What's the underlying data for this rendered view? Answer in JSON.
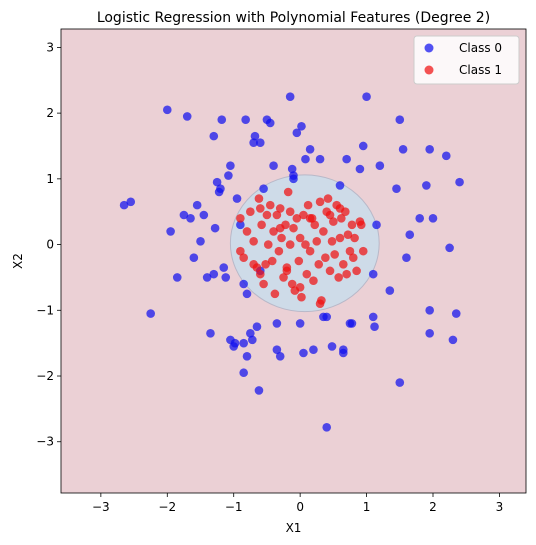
{
  "chart_data": {
    "type": "scatter",
    "title": "Logistic Regression with Polynomial Features (Degree 2)",
    "xlabel": "X1",
    "ylabel": "X2",
    "xlim": [
      -3.6,
      3.4
    ],
    "ylim": [
      -3.78,
      3.28
    ],
    "xticks": [
      -3,
      -2,
      -1,
      0,
      1,
      2,
      3
    ],
    "yticks": [
      -3,
      -2,
      -1,
      0,
      1,
      2,
      3
    ],
    "grid": false,
    "legend_placement": "top-right",
    "background_region": {
      "label": "Class 0 region",
      "color": "#ebd0d5"
    },
    "decision_region": {
      "center": [
        0.07,
        0.02
      ],
      "radius_x": 1.12,
      "radius_y": 1.04,
      "color": "#cedbe8",
      "edge_color": "#b8b8c8"
    },
    "series": [
      {
        "name": "Class 0",
        "color": "#1010ee",
        "points": [
          [
            -2.65,
            0.6
          ],
          [
            -2.55,
            0.65
          ],
          [
            -2.25,
            -1.05
          ],
          [
            -2.0,
            2.05
          ],
          [
            -1.95,
            0.2
          ],
          [
            -1.85,
            -0.5
          ],
          [
            -1.75,
            0.45
          ],
          [
            -1.7,
            1.95
          ],
          [
            -1.65,
            0.4
          ],
          [
            -1.6,
            -0.2
          ],
          [
            -1.55,
            0.6
          ],
          [
            -1.5,
            0.05
          ],
          [
            -1.45,
            0.45
          ],
          [
            -1.4,
            -0.5
          ],
          [
            -1.35,
            -1.35
          ],
          [
            -1.3,
            1.65
          ],
          [
            -1.3,
            -0.45
          ],
          [
            -1.28,
            0.25
          ],
          [
            -1.25,
            0.95
          ],
          [
            -1.22,
            0.8
          ],
          [
            -1.2,
            0.85
          ],
          [
            -1.18,
            1.9
          ],
          [
            -1.15,
            -0.35
          ],
          [
            -1.12,
            -0.5
          ],
          [
            -1.08,
            1.05
          ],
          [
            -1.05,
            1.2
          ],
          [
            -1.05,
            -1.45
          ],
          [
            -1.0,
            -1.55
          ],
          [
            -0.98,
            -1.5
          ],
          [
            -0.95,
            0.7
          ],
          [
            -0.9,
            0.3
          ],
          [
            -0.85,
            -0.6
          ],
          [
            -0.85,
            -1.95
          ],
          [
            -0.82,
            1.9
          ],
          [
            -0.8,
            -0.75
          ],
          [
            -0.8,
            -1.7
          ],
          [
            -0.75,
            -1.35
          ],
          [
            -0.72,
            -1.45
          ],
          [
            -0.7,
            1.55
          ],
          [
            -0.68,
            1.65
          ],
          [
            -0.65,
            -1.25
          ],
          [
            -0.62,
            -2.22
          ],
          [
            -0.6,
            1.55
          ],
          [
            -0.55,
            0.85
          ],
          [
            -0.5,
            1.9
          ],
          [
            -0.45,
            1.85
          ],
          [
            -0.4,
            1.2
          ],
          [
            -0.35,
            -1.2
          ],
          [
            -0.35,
            -1.6
          ],
          [
            -0.3,
            -1.7
          ],
          [
            -0.15,
            2.25
          ],
          [
            -0.12,
            1.15
          ],
          [
            -0.1,
            1.0
          ],
          [
            -0.1,
            1.05
          ],
          [
            -0.05,
            1.7
          ],
          [
            0.0,
            -1.2
          ],
          [
            0.02,
            1.8
          ],
          [
            0.05,
            -1.65
          ],
          [
            0.15,
            1.45
          ],
          [
            0.2,
            -1.6
          ],
          [
            0.3,
            1.3
          ],
          [
            0.35,
            -1.1
          ],
          [
            0.4,
            -1.1
          ],
          [
            0.4,
            -2.78
          ],
          [
            0.48,
            -1.55
          ],
          [
            0.6,
            0.9
          ],
          [
            0.65,
            -1.6
          ],
          [
            0.65,
            -1.65
          ],
          [
            0.7,
            1.3
          ],
          [
            0.75,
            -1.2
          ],
          [
            0.78,
            -1.2
          ],
          [
            0.9,
            1.15
          ],
          [
            0.95,
            1.5
          ],
          [
            1.0,
            2.25
          ],
          [
            1.1,
            -1.1
          ],
          [
            1.1,
            -0.45
          ],
          [
            1.12,
            -1.25
          ],
          [
            1.15,
            0.3
          ],
          [
            1.2,
            1.2
          ],
          [
            1.35,
            -0.7
          ],
          [
            1.5,
            1.9
          ],
          [
            1.5,
            -2.1
          ],
          [
            1.55,
            1.45
          ],
          [
            1.6,
            -0.2
          ],
          [
            1.65,
            0.15
          ],
          [
            1.8,
            0.4
          ],
          [
            1.9,
            0.9
          ],
          [
            1.95,
            1.45
          ],
          [
            1.95,
            -1.0
          ],
          [
            1.95,
            -1.35
          ],
          [
            2.0,
            0.4
          ],
          [
            2.2,
            1.35
          ],
          [
            2.25,
            -0.05
          ],
          [
            2.3,
            -1.45
          ],
          [
            2.35,
            -1.05
          ],
          [
            2.4,
            0.95
          ],
          [
            1.45,
            0.85
          ],
          [
            -0.85,
            -1.5
          ],
          [
            0.08,
            1.3
          ],
          [
            -0.6,
            -0.4
          ]
        ]
      },
      {
        "name": "Class 1",
        "color": "#f01010",
        "points": [
          [
            -0.9,
            -0.1
          ],
          [
            -0.9,
            0.4
          ],
          [
            -0.85,
            -0.2
          ],
          [
            -0.8,
            0.2
          ],
          [
            -0.75,
            0.5
          ],
          [
            -0.7,
            0.05
          ],
          [
            -0.65,
            -0.35
          ],
          [
            -0.62,
            0.7
          ],
          [
            -0.6,
            -0.45
          ],
          [
            -0.58,
            0.3
          ],
          [
            -0.55,
            -0.6
          ],
          [
            -0.52,
            -0.3
          ],
          [
            -0.5,
            0.45
          ],
          [
            -0.48,
            0.0
          ],
          [
            -0.45,
            0.6
          ],
          [
            -0.42,
            -0.25
          ],
          [
            -0.4,
            0.2
          ],
          [
            -0.38,
            -0.75
          ],
          [
            -0.35,
            0.45
          ],
          [
            -0.32,
            -0.1
          ],
          [
            -0.3,
            0.55
          ],
          [
            -0.28,
            0.1
          ],
          [
            -0.25,
            -0.5
          ],
          [
            -0.22,
            0.3
          ],
          [
            -0.2,
            -0.35
          ],
          [
            -0.18,
            0.8
          ],
          [
            -0.15,
            0.0
          ],
          [
            -0.12,
            -0.6
          ],
          [
            -0.1,
            0.25
          ],
          [
            -0.08,
            -0.7
          ],
          [
            -0.05,
            0.4
          ],
          [
            -0.02,
            -0.25
          ],
          [
            0.0,
            0.1
          ],
          [
            0.02,
            -0.8
          ],
          [
            0.05,
            0.45
          ],
          [
            0.08,
            0.0
          ],
          [
            0.1,
            -0.45
          ],
          [
            0.12,
            0.6
          ],
          [
            0.15,
            -0.1
          ],
          [
            0.18,
            0.4
          ],
          [
            0.2,
            -0.55
          ],
          [
            0.22,
            0.3
          ],
          [
            0.25,
            0.05
          ],
          [
            0.28,
            -0.3
          ],
          [
            0.3,
            0.65
          ],
          [
            0.32,
            -0.85
          ],
          [
            0.35,
            0.2
          ],
          [
            0.38,
            -0.2
          ],
          [
            0.4,
            0.5
          ],
          [
            0.42,
            0.7
          ],
          [
            0.45,
            -0.4
          ],
          [
            0.48,
            0.05
          ],
          [
            0.5,
            0.35
          ],
          [
            0.52,
            -0.15
          ],
          [
            0.55,
            0.6
          ],
          [
            0.58,
            -0.5
          ],
          [
            0.6,
            0.1
          ],
          [
            0.62,
            0.4
          ],
          [
            0.65,
            -0.3
          ],
          [
            0.68,
            0.5
          ],
          [
            0.7,
            -0.45
          ],
          [
            0.72,
            0.15
          ],
          [
            0.75,
            -0.1
          ],
          [
            0.78,
            0.3
          ],
          [
            0.8,
            -0.2
          ],
          [
            0.82,
            0.1
          ],
          [
            0.85,
            -0.4
          ],
          [
            0.9,
            0.35
          ],
          [
            0.92,
            0.3
          ],
          [
            0.95,
            -0.1
          ],
          [
            -0.6,
            0.55
          ],
          [
            -0.3,
            0.25
          ],
          [
            0.0,
            -0.65
          ],
          [
            0.15,
            0.4
          ],
          [
            0.3,
            -0.9
          ],
          [
            0.45,
            0.45
          ],
          [
            -0.7,
            -0.3
          ],
          [
            -0.2,
            -0.4
          ],
          [
            -0.15,
            0.5
          ],
          [
            0.6,
            0.55
          ]
        ]
      }
    ]
  }
}
